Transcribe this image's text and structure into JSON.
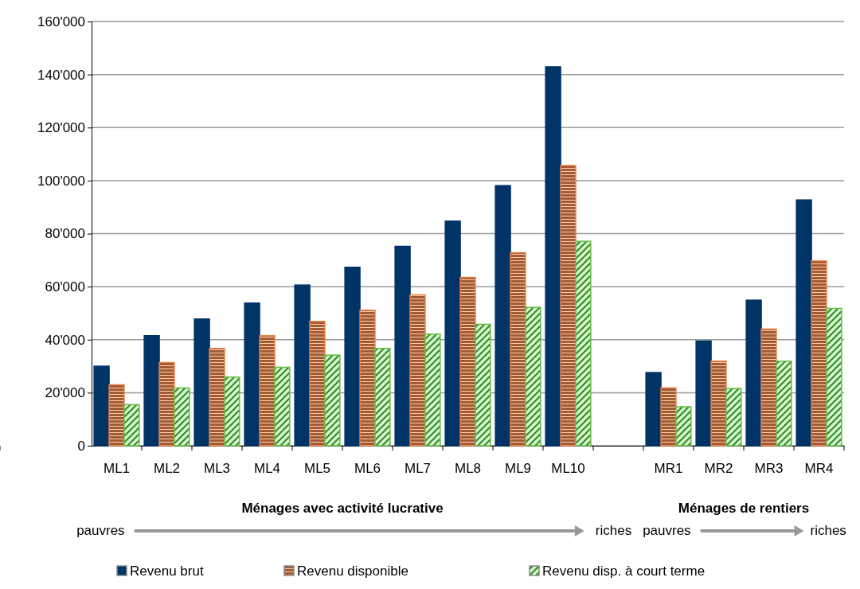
{
  "chart_data": {
    "type": "bar",
    "categories": [
      "ML1",
      "ML2",
      "ML3",
      "ML4",
      "ML5",
      "ML6",
      "ML7",
      "ML8",
      "ML9",
      "ML10",
      null,
      "MR1",
      "MR2",
      "MR3",
      "MR4"
    ],
    "series": [
      {
        "name": "Revenu brut",
        "color": "#003366",
        "values": [
          30000,
          41500,
          47800,
          53800,
          60600,
          67300,
          75200,
          84700,
          98100,
          142900,
          null,
          27600,
          39500,
          54900,
          92700
        ]
      },
      {
        "name": "Revenu disponible",
        "color": "#e8804a",
        "values": [
          23000,
          31400,
          36700,
          41500,
          46900,
          51100,
          56900,
          63500,
          72800,
          105700,
          null,
          21800,
          31900,
          44000,
          69700
        ]
      },
      {
        "name": "Revenu disp. à court terme",
        "color": "#66bb44",
        "values": [
          15500,
          21800,
          25900,
          29600,
          34200,
          36700,
          42100,
          45800,
          52200,
          77100,
          null,
          14700,
          21600,
          31900,
          51800
        ]
      }
    ],
    "ylim": [
      0,
      160000
    ],
    "yticks": [
      0,
      {
        "value": 20000,
        "label": "20'000"
      },
      {
        "value": 40000,
        "label": "40'000"
      },
      {
        "value": 60000,
        "label": "60'000"
      },
      {
        "value": 80000,
        "label": "80'000"
      },
      {
        "value": 100000,
        "label": "100'000"
      },
      {
        "value": 120000,
        "label": "120'000"
      },
      {
        "value": 140000,
        "label": "140'000"
      },
      {
        "value": 160000,
        "label": "160'000"
      }
    ],
    "grid": "y",
    "legend": "bottom",
    "annotations": [
      "Ménages avec activité lucrative",
      "pauvres",
      "riches",
      "Ménages de rentiers",
      "pauvres",
      "riches"
    ]
  }
}
